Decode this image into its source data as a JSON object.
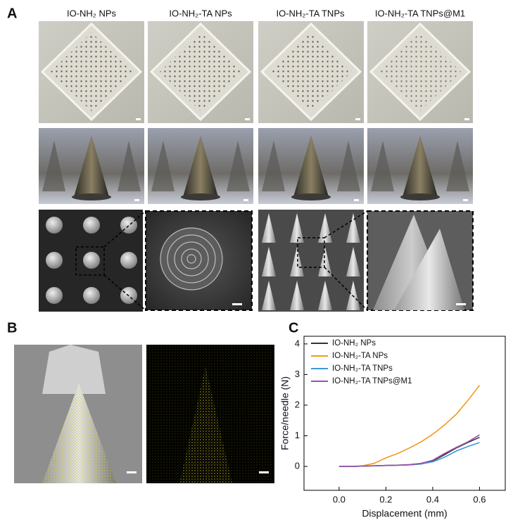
{
  "panel_labels": [
    "A",
    "B",
    "C"
  ],
  "panel_a_headers": [
    "IO-NH₂ NPs",
    "IO-NH₂-TA NPs",
    "IO-NH₂-TA TNPs",
    "IO-NH₂-TA TNPs@M1"
  ],
  "chart_data": {
    "type": "line",
    "xlabel": "Displacement (mm)",
    "ylabel": "Force/needle (N)",
    "x": [
      0,
      0.05,
      0.1,
      0.15,
      0.2,
      0.25,
      0.3,
      0.35,
      0.4,
      0.45,
      0.5,
      0.55,
      0.6
    ],
    "series": [
      {
        "name": "IO-NH₂ NPs",
        "color": "#333333",
        "values": [
          0,
          0,
          0.01,
          0.02,
          0.03,
          0.04,
          0.05,
          0.08,
          0.18,
          0.38,
          0.6,
          0.78,
          0.95
        ]
      },
      {
        "name": "IO-NH₂-TA NPs",
        "color": "#f29b1d",
        "values": [
          0,
          0,
          0.02,
          0.1,
          0.28,
          0.42,
          0.6,
          0.8,
          1.05,
          1.35,
          1.7,
          2.15,
          2.65
        ]
      },
      {
        "name": "IO-NH₂-TA TNPs",
        "color": "#3a9ad9",
        "values": [
          0,
          0,
          0.01,
          0.02,
          0.03,
          0.04,
          0.05,
          0.08,
          0.15,
          0.3,
          0.5,
          0.65,
          0.78
        ]
      },
      {
        "name": "IO-NH₂-TA TNPs@M1",
        "color": "#9b4fa8",
        "values": [
          0,
          0,
          0.01,
          0.02,
          0.03,
          0.04,
          0.06,
          0.1,
          0.2,
          0.42,
          0.62,
          0.8,
          1.03
        ]
      }
    ],
    "xlim": [
      -0.15,
      0.71
    ],
    "ylim": [
      -0.78,
      4.25
    ],
    "xticks": [
      {
        "value": 0,
        "label": "0.0"
      },
      0.2,
      0.4,
      0.6
    ],
    "yticks": [
      0,
      1,
      2,
      3,
      4
    ]
  }
}
